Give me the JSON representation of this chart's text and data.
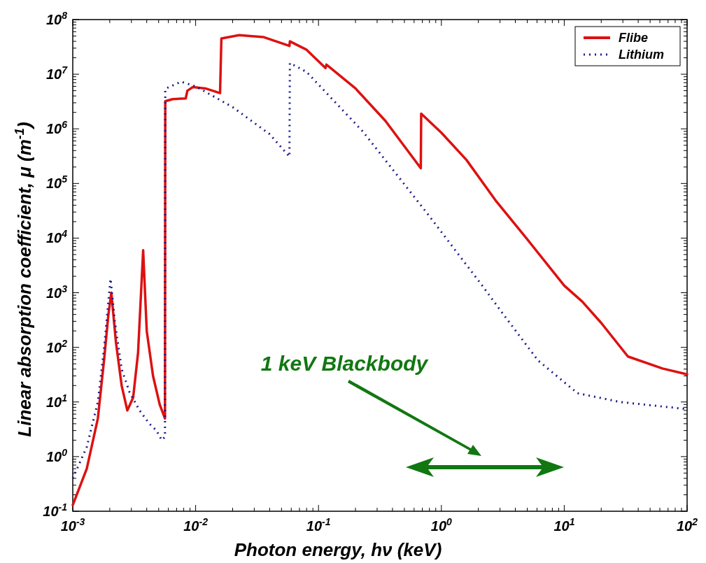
{
  "chart_data": {
    "type": "line",
    "xlabel": "Photon energy, hν (keV)",
    "ylabel": "Linear absorption coefficient, μ (m$^{-1}$)",
    "log": "xy",
    "legend": "top right",
    "xlim": [
      0.001,
      100
    ],
    "ylim": [
      0.1,
      100000000
    ],
    "xticks": [
      {
        "value": 0.001,
        "label": "10$^{-3}$"
      },
      {
        "value": 0.01,
        "label": "10$^{-2}$"
      },
      {
        "value": 0.1,
        "label": "10$^{-1}$"
      },
      {
        "value": 1,
        "label": "10$^{0}$"
      },
      {
        "value": 10,
        "label": "10$^{1}$"
      },
      {
        "value": 100,
        "label": "10$^{2}$"
      }
    ],
    "yticks": [
      {
        "value": 0.1,
        "label": "10$^{-1}$"
      },
      {
        "value": 1,
        "label": "10$^{0}$"
      },
      {
        "value": 10,
        "label": "10$^{1}$"
      },
      {
        "value": 100,
        "label": "10$^{2}$"
      },
      {
        "value": 1000,
        "label": "10$^{3}$"
      },
      {
        "value": 10000,
        "label": "10$^{4}$"
      },
      {
        "value": 100000,
        "label": "10$^{5}$"
      },
      {
        "value": 1000000,
        "label": "10$^{6}$"
      },
      {
        "value": 10000000,
        "label": "10$^{7}$"
      },
      {
        "value": 100000000,
        "label": "10$^{8}$"
      }
    ],
    "annotations": [
      "1 keV Blackbody"
    ],
    "series": [
      {
        "name": "Flibe",
        "color": "#dd1111",
        "line_style": "solid",
        "x": [
          0.001,
          0.0013,
          0.0016,
          0.0018,
          0.00195,
          0.00206,
          0.00225,
          0.0025,
          0.00278,
          0.0031,
          0.0034,
          0.00374,
          0.004,
          0.0045,
          0.0051,
          0.00563,
          0.00566,
          0.0065,
          0.0083,
          0.00857,
          0.0095,
          0.012,
          0.0158,
          0.0162,
          0.0226,
          0.0355,
          0.058,
          0.0585,
          0.08,
          0.114,
          0.116,
          0.2,
          0.35,
          0.68,
          0.685,
          1.0,
          1.6,
          2.8,
          5,
          10,
          14,
          20,
          33,
          63,
          100
        ],
        "values": [
          0.13,
          0.6,
          5,
          60,
          400,
          1000,
          120,
          20,
          7,
          12,
          80,
          6000,
          200,
          30,
          9,
          5,
          3200000,
          3500000,
          3600000,
          5000000,
          5800000,
          5500000,
          4500000,
          45000000,
          52000000,
          48000000,
          33000000,
          40000000,
          28000000,
          13000000,
          15000000,
          5500000,
          1400000,
          190000,
          1900000,
          850000,
          270000,
          47000,
          9500,
          1350,
          690,
          280,
          68,
          41,
          32
        ]
      },
      {
        "name": "Lithium",
        "color": "#1a1a8c",
        "line_style": "dotted",
        "x": [
          0.001,
          0.0013,
          0.0016,
          0.0018,
          0.00195,
          0.00203,
          0.0022,
          0.0025,
          0.0029,
          0.0035,
          0.0042,
          0.0048,
          0.0053,
          0.00563,
          0.00566,
          0.0076,
          0.01,
          0.02,
          0.04,
          0.058,
          0.0585,
          0.08,
          0.23,
          0.79,
          2.15,
          3.2,
          6.1,
          12.8,
          28.5,
          100
        ],
        "values": [
          0.4,
          1.5,
          10,
          100,
          700,
          1800,
          300,
          40,
          15,
          7,
          4,
          3,
          2,
          2.3,
          5400000,
          7300000,
          6000000,
          2500000,
          800000,
          310000,
          16000000,
          11000000,
          890000,
          26000,
          1350,
          400,
          58,
          14.5,
          10,
          7.4
        ]
      }
    ]
  }
}
